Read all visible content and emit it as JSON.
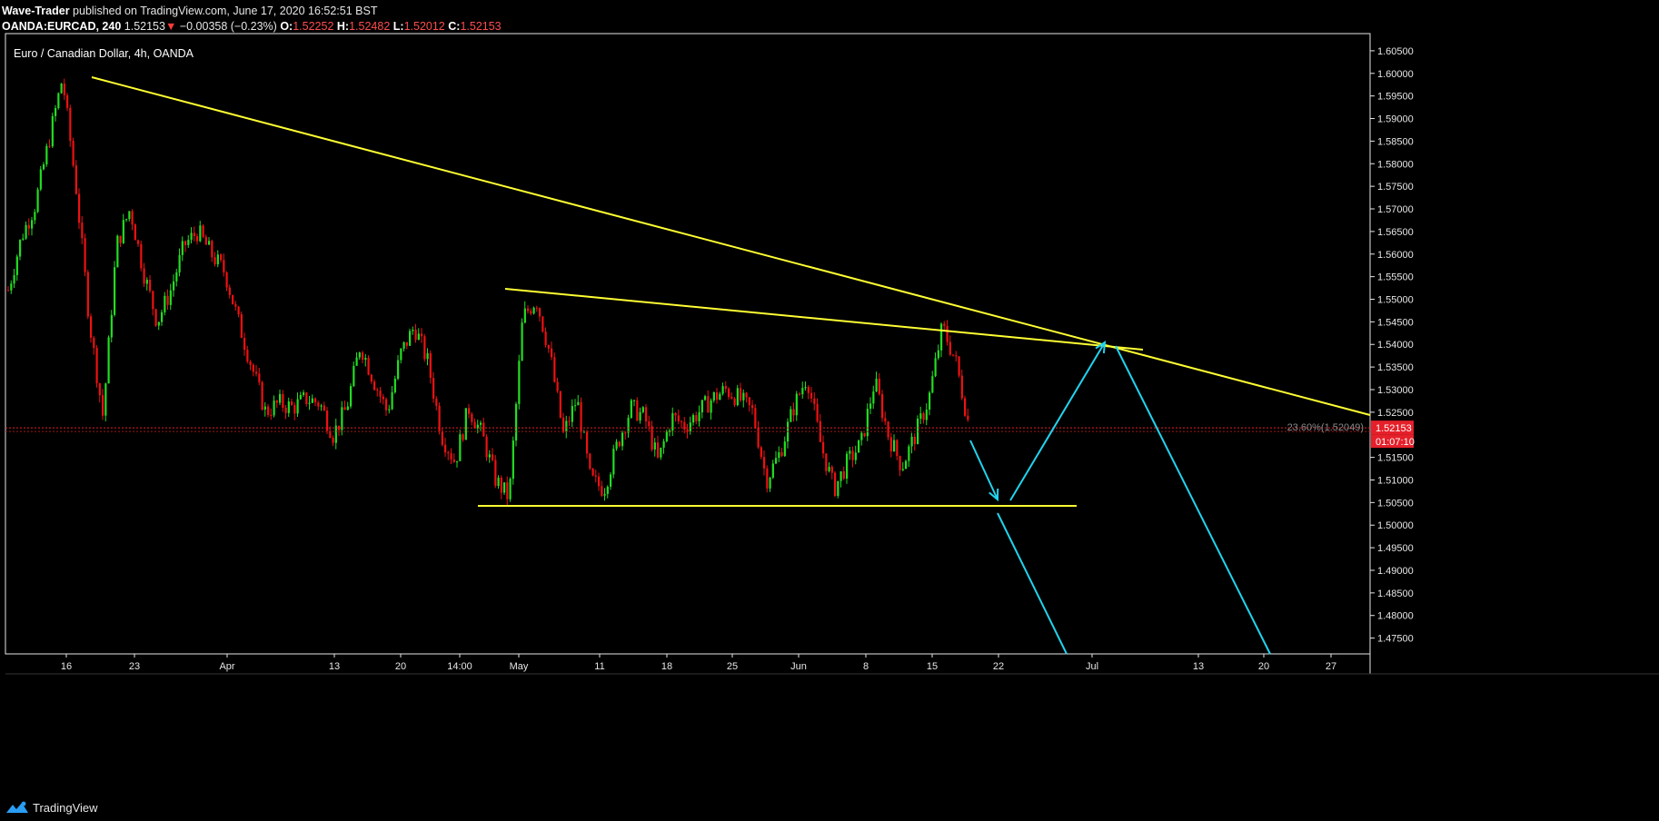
{
  "header": {
    "author": "Wave-Trader",
    "published": " published on TradingView.com, June 17, 2020 16:52:51 BST",
    "symbol": "OANDA:EURCAD, 240",
    "last": "1.52153",
    "arrow": "▼",
    "change": "−0.00358 (−0.23%)",
    "o_label": "O:",
    "o_value": "1.52252",
    "h_label": "H:",
    "h_value": "1.52482",
    "l_label": "L:",
    "l_value": "1.52012",
    "c_label": "C:",
    "c_value": "1.52153"
  },
  "footer": {
    "brand": "TradingView"
  },
  "colors": {
    "background": "#000000",
    "up_candle": "#22dd22",
    "down_candle": "#ee1111",
    "trendline": "#ffff33",
    "projection": "#22d3ee",
    "price_label_bg": "#e5202a"
  },
  "chart_data": {
    "type": "candlestick",
    "title": "Euro / Canadian Dollar, 4h, OANDA",
    "instrument": "EURCAD",
    "timeframe": "4h",
    "x_ticks": [
      "16",
      "23",
      "Apr",
      "13",
      "20",
      "14:00",
      "May",
      "11",
      "18",
      "25",
      "Jun",
      "8",
      "15",
      "22",
      "Jul",
      "13",
      "20",
      "27"
    ],
    "y_ticks": [
      "1.60500",
      "1.60000",
      "1.59500",
      "1.59000",
      "1.58500",
      "1.58000",
      "1.57500",
      "1.57000",
      "1.56500",
      "1.56000",
      "1.55500",
      "1.55000",
      "1.54500",
      "1.54000",
      "1.53500",
      "1.53000",
      "1.52500",
      "1.51500",
      "1.51000",
      "1.50500",
      "1.50000",
      "1.49500",
      "1.49000",
      "1.48500",
      "1.48000",
      "1.47500"
    ],
    "ylim": [
      1.4715,
      1.6088
    ],
    "price_path": [
      [
        "16",
        1.552
      ],
      [
        "17",
        1.564
      ],
      [
        "18",
        1.571
      ],
      [
        "19",
        1.585
      ],
      [
        "20",
        1.599
      ],
      [
        "21",
        1.575
      ],
      [
        "22",
        1.545
      ],
      [
        "23",
        1.524
      ],
      [
        "24",
        1.562
      ],
      [
        "25",
        1.57
      ],
      [
        "26",
        1.556
      ],
      [
        "27",
        1.545
      ],
      [
        "28",
        1.552
      ],
      [
        "29",
        1.562
      ],
      [
        "30",
        1.565
      ],
      [
        "31",
        1.56
      ],
      [
        "Apr 1",
        1.556
      ],
      [
        "Apr 2",
        1.545
      ],
      [
        "Apr 3",
        1.535
      ],
      [
        "Apr 6",
        1.525
      ],
      [
        "Apr 7",
        1.527
      ],
      [
        "Apr 8",
        1.526
      ],
      [
        "Apr 9",
        1.528
      ],
      [
        "Apr 10",
        1.527
      ],
      [
        "Apr 13",
        1.52
      ],
      [
        "Apr 14",
        1.526
      ],
      [
        "Apr 15",
        1.54
      ],
      [
        "Apr 16",
        1.532
      ],
      [
        "Apr 17",
        1.525
      ],
      [
        "Apr 20",
        1.538
      ],
      [
        "Apr 21",
        1.544
      ],
      [
        "Apr 22",
        1.536
      ],
      [
        "Apr 23",
        1.52
      ],
      [
        "Apr 24",
        1.514
      ],
      [
        "Apr 27",
        1.526
      ],
      [
        "Apr 28",
        1.52
      ],
      [
        "Apr 29",
        1.51
      ],
      [
        "Apr 30",
        1.506
      ],
      [
        "May",
        1.546
      ],
      [
        "May 4",
        1.55
      ],
      [
        "May 5",
        1.538
      ],
      [
        "May 6",
        1.52
      ],
      [
        "May 7",
        1.528
      ],
      [
        "May 8",
        1.51
      ],
      [
        "May 11",
        1.508
      ],
      [
        "May 12",
        1.518
      ],
      [
        "May 13",
        1.526
      ],
      [
        "May 14",
        1.524
      ],
      [
        "May 15",
        1.514
      ],
      [
        "May 18",
        1.524
      ],
      [
        "May 19",
        1.522
      ],
      [
        "May 20",
        1.525
      ],
      [
        "May 21",
        1.528
      ],
      [
        "May 22",
        1.53
      ],
      [
        "May 25",
        1.528
      ],
      [
        "May 26",
        1.525
      ],
      [
        "May 27",
        1.51
      ],
      [
        "May 28",
        1.516
      ],
      [
        "May 29",
        1.526
      ],
      [
        "Jun",
        1.533
      ],
      [
        "Jun 2",
        1.518
      ],
      [
        "Jun 3",
        1.508
      ],
      [
        "Jun 4",
        1.514
      ],
      [
        "Jun 5",
        1.518
      ],
      [
        "Jun 8",
        1.532
      ],
      [
        "Jun 9",
        1.52
      ],
      [
        "Jun 10",
        1.513
      ],
      [
        "Jun 11",
        1.52
      ],
      [
        "Jun 12",
        1.528
      ],
      [
        "Jun 15",
        1.544
      ],
      [
        "Jun 16",
        1.536
      ],
      [
        "Jun 17",
        1.5215
      ]
    ],
    "last_price": "1.52153",
    "countdown": "01:07:10",
    "fib_label": "23.60%(1.52049)",
    "annotations": [
      {
        "type": "trendline",
        "from": [
          "Mar 16",
          1.6
        ],
        "to": [
          "Jul 30",
          1.525
        ]
      },
      {
        "type": "trendline",
        "from": [
          "Apr 30",
          1.5535
        ],
        "to": [
          "Jul 6",
          1.54
        ]
      },
      {
        "type": "support",
        "price": 1.505,
        "from": "Apr 27",
        "to": "Jun 29"
      },
      {
        "type": "arrow",
        "from": [
          "Jun 18",
          1.5205
        ],
        "to": [
          "Jun 22",
          1.506
        ]
      },
      {
        "type": "arrow",
        "from": [
          "Jun 23",
          1.5065
        ],
        "to": [
          "Jul 2",
          1.541
        ]
      },
      {
        "type": "projection",
        "from": [
          "Jun 22",
          1.504
        ],
        "to": [
          "Jun 29",
          1.4715
        ]
      },
      {
        "type": "projection",
        "from": [
          "Jul 3",
          1.54
        ],
        "to": [
          "Jul 20",
          1.4715
        ]
      }
    ]
  }
}
